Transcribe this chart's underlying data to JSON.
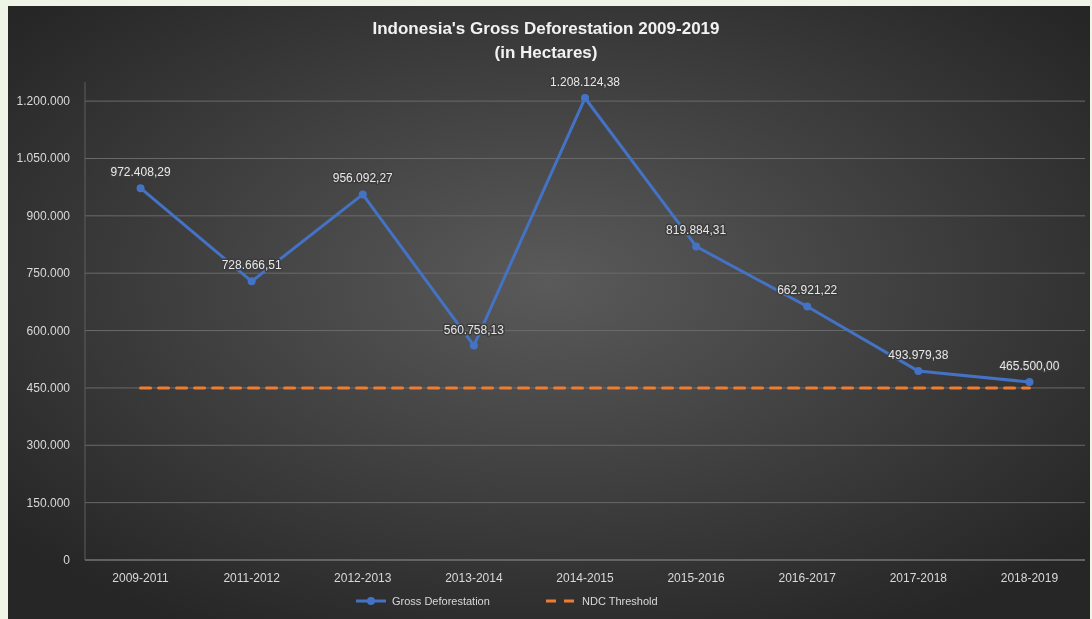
{
  "chart_data": {
    "type": "line",
    "title": "Indonesia's Gross Deforestation 2009-2019",
    "subtitle": "(in Hectares)",
    "categories": [
      "2009-2011",
      "2011-2012",
      "2012-2013",
      "2013-2014",
      "2014-2015",
      "2015-2016",
      "2016-2017",
      "2017-2018",
      "2018-2019"
    ],
    "series": [
      {
        "name": "Gross Deforestation",
        "color": "#4472c4",
        "marker": "circle",
        "line_style": "solid",
        "values": [
          972408.29,
          728666.51,
          956092.27,
          560758.13,
          1208124.38,
          819884.31,
          662921.22,
          493979.38,
          465500.0
        ],
        "value_labels": [
          "972.408,29",
          "728.666,51",
          "956.092,27",
          "560.758,13",
          "1.208.124,38",
          "819.884,31",
          "662.921,22",
          "493.979,38",
          "465.500,00"
        ]
      },
      {
        "name": "NDC Threshold",
        "color": "#ed7d31",
        "marker": "none",
        "line_style": "dashed",
        "values": [
          450000,
          450000,
          450000,
          450000,
          450000,
          450000,
          450000,
          450000,
          450000
        ]
      }
    ],
    "ylim": [
      0,
      1250000
    ],
    "yticks": [
      0,
      {
        "value": 150000,
        "label": "150.000"
      },
      {
        "value": 300000,
        "label": "300.000"
      },
      {
        "value": 450000,
        "label": "450.000"
      },
      {
        "value": 600000,
        "label": "600.000"
      },
      {
        "value": 750000,
        "label": "750.000"
      },
      {
        "value": 900000,
        "label": "900.000"
      },
      {
        "value": 1050000,
        "label": "1.050.000"
      },
      {
        "value": 1200000,
        "label": "1.200.000"
      }
    ],
    "grid": "y",
    "legend": "bottom"
  }
}
